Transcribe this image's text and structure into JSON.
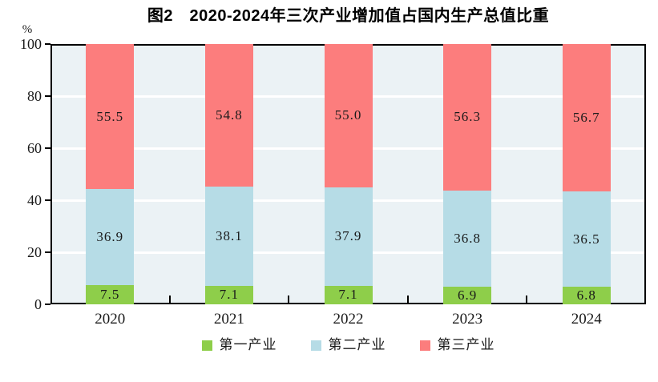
{
  "title": "图2　2020-2024年三次产业增加值占国内生产总值比重",
  "y_axis": {
    "unit_label": "%",
    "tick_labels": [
      "0",
      "20",
      "40",
      "60",
      "80",
      "100"
    ],
    "min": 0,
    "max": 100,
    "tick_step": 20
  },
  "x_axis": {
    "tick_labels": [
      "2020",
      "2021",
      "2022",
      "2023",
      "2024"
    ]
  },
  "legend": {
    "position": "bottom",
    "items": [
      {
        "label": "第一产业",
        "color": "#8ECE4A"
      },
      {
        "label": "第二产业",
        "color": "#B6DCE6"
      },
      {
        "label": "第三产业",
        "color": "#FC7D7D"
      }
    ]
  },
  "colors": {
    "plot_background": "#EBF2F5",
    "gridline": "#FFFFFF",
    "axis": "#000000",
    "label_text": "#1a1a1a"
  },
  "chart_data": {
    "type": "bar",
    "stacked": true,
    "title": "图2　2020-2024年三次产业增加值占国内生产总值比重",
    "categories": [
      "2020",
      "2021",
      "2022",
      "2023",
      "2024"
    ],
    "series": [
      {
        "name": "第一产业",
        "color": "#8ECE4A",
        "values": [
          7.5,
          7.1,
          7.1,
          6.9,
          6.8
        ]
      },
      {
        "name": "第二产业",
        "color": "#B6DCE6",
        "values": [
          36.9,
          38.1,
          37.9,
          36.8,
          36.5
        ]
      },
      {
        "name": "第三产业",
        "color": "#FC7D7D",
        "values": [
          55.5,
          54.8,
          55.0,
          56.3,
          56.7
        ]
      }
    ],
    "xlabel": "",
    "ylabel": "%",
    "ylim": [
      0,
      100
    ],
    "grid": true,
    "gridlines_at": [
      20,
      40,
      60,
      80
    ],
    "legend_position": "bottom"
  }
}
